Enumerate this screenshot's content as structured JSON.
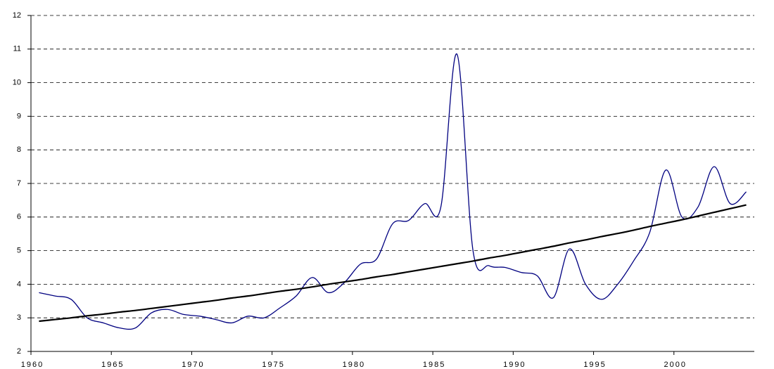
{
  "chart_data": {
    "type": "line",
    "categories": [
      "1960",
      null,
      null,
      null,
      null,
      "1965",
      null,
      null,
      null,
      null,
      "1970",
      null,
      null,
      null,
      null,
      "1975",
      null,
      null,
      null,
      null,
      "1980",
      null,
      null,
      null,
      null,
      "1985",
      null,
      null,
      null,
      null,
      "1990",
      null,
      null,
      null,
      null,
      "1995",
      null,
      null,
      null,
      null,
      "2000",
      null,
      null,
      null,
      null
    ],
    "series": [
      {
        "color": "#000080",
        "values": [
          3.75,
          3.65,
          3.55,
          3.0,
          2.85,
          2.7,
          2.7,
          3.15,
          3.25,
          3.1,
          3.05,
          2.95,
          2.85,
          3.05,
          3.0,
          3.3,
          3.65,
          4.2,
          3.75,
          4.05,
          4.6,
          4.75,
          5.8,
          5.9,
          6.4,
          6.3,
          10.85,
          5.0,
          4.55,
          4.5,
          4.35,
          4.25,
          3.6,
          5.05,
          4.0,
          3.55,
          4.0,
          4.7,
          5.55,
          7.4,
          6.0,
          6.3,
          7.5,
          6.4,
          6.75
        ]
      },
      {
        "color": "#000000",
        "values": [
          2.9,
          2.95,
          3.0,
          3.06,
          3.11,
          3.17,
          3.22,
          3.28,
          3.34,
          3.4,
          3.46,
          3.52,
          3.59,
          3.65,
          3.72,
          3.79,
          3.85,
          3.92,
          4.0,
          4.07,
          4.14,
          4.22,
          4.29,
          4.37,
          4.45,
          4.53,
          4.61,
          4.69,
          4.78,
          4.86,
          4.95,
          5.04,
          5.13,
          5.23,
          5.32,
          5.42,
          5.51,
          5.61,
          5.72,
          5.82,
          5.92,
          6.03,
          6.14,
          6.25,
          6.36
        ]
      }
    ],
    "ylim": [
      2,
      12
    ],
    "yticks": [
      2,
      3,
      4,
      5,
      6,
      7,
      8,
      9,
      10,
      11,
      12
    ],
    "grid": true
  }
}
